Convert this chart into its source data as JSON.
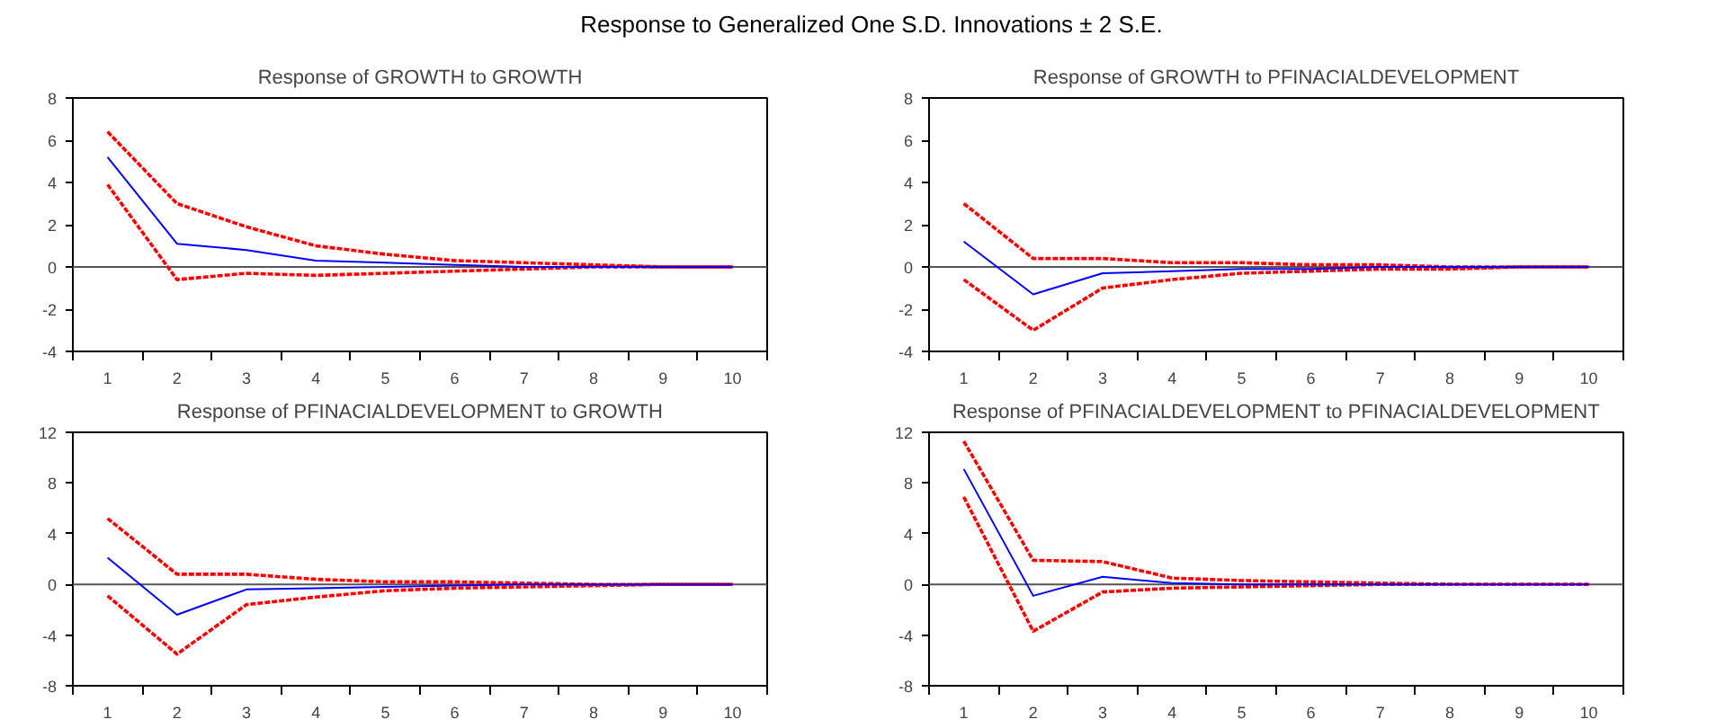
{
  "chart_data": [
    {
      "type": "line",
      "title": "Response of GROWTH to GROWTH",
      "annotations": [
        "Response to Generalized One S.D. Innovations ± 2 S.E."
      ],
      "categories": [
        "1",
        "2",
        "3",
        "4",
        "5",
        "6",
        "7",
        "8",
        "9",
        "10"
      ],
      "ylim": [
        -4,
        8
      ],
      "yticks": [
        -4,
        -2,
        0,
        2,
        4,
        6,
        8
      ],
      "grid": false,
      "ref_lines": [
        {
          "axis": "y",
          "value": 0,
          "color": "#555555"
        }
      ],
      "series": [
        {
          "color": "#ff0000",
          "line_style": "dashed",
          "values": [
            6.4,
            3.0,
            1.9,
            1.0,
            0.6,
            0.3,
            0.2,
            0.1,
            0.0,
            0.0
          ]
        },
        {
          "color": "#ff0000",
          "line_style": "dashed",
          "values": [
            3.9,
            -0.6,
            -0.3,
            -0.4,
            -0.3,
            -0.2,
            -0.1,
            0.0,
            0.0,
            0.0
          ]
        },
        {
          "color": "#0000ff",
          "line_style": "solid",
          "values": [
            5.2,
            1.1,
            0.8,
            0.3,
            0.2,
            0.1,
            0.0,
            0.0,
            0.0,
            0.0
          ]
        }
      ]
    },
    {
      "type": "line",
      "title": "Response of GROWTH to PFINACIALDEVELOPMENT",
      "categories": [
        "1",
        "2",
        "3",
        "4",
        "5",
        "6",
        "7",
        "8",
        "9",
        "10"
      ],
      "ylim": [
        -4,
        8
      ],
      "yticks": [
        -4,
        -2,
        0,
        2,
        4,
        6,
        8
      ],
      "grid": false,
      "ref_lines": [
        {
          "axis": "y",
          "value": 0,
          "color": "#555555"
        }
      ],
      "series": [
        {
          "color": "#ff0000",
          "line_style": "dashed",
          "values": [
            3.0,
            0.4,
            0.4,
            0.2,
            0.2,
            0.1,
            0.1,
            0.0,
            0.0,
            0.0
          ]
        },
        {
          "color": "#ff0000",
          "line_style": "dashed",
          "values": [
            -0.6,
            -3.0,
            -1.0,
            -0.6,
            -0.3,
            -0.2,
            -0.1,
            -0.1,
            0.0,
            0.0
          ]
        },
        {
          "color": "#0000ff",
          "line_style": "solid",
          "values": [
            1.2,
            -1.3,
            -0.3,
            -0.2,
            -0.1,
            -0.1,
            0.0,
            0.0,
            0.0,
            0.0
          ]
        }
      ]
    },
    {
      "type": "line",
      "title": "Response of PFINACIALDEVELOPMENT to GROWTH",
      "categories": [
        "1",
        "2",
        "3",
        "4",
        "5",
        "6",
        "7",
        "8",
        "9",
        "10"
      ],
      "ylim": [
        -8,
        12
      ],
      "yticks": [
        -8,
        -4,
        0,
        4,
        8,
        12
      ],
      "grid": false,
      "ref_lines": [
        {
          "axis": "y",
          "value": 0,
          "color": "#555555"
        }
      ],
      "series": [
        {
          "color": "#ff0000",
          "line_style": "dashed",
          "values": [
            5.2,
            0.8,
            0.8,
            0.4,
            0.2,
            0.2,
            0.1,
            0.0,
            0.0,
            0.0
          ]
        },
        {
          "color": "#ff0000",
          "line_style": "dashed",
          "values": [
            -0.9,
            -5.5,
            -1.6,
            -1.0,
            -0.5,
            -0.3,
            -0.2,
            -0.1,
            0.0,
            0.0
          ]
        },
        {
          "color": "#0000ff",
          "line_style": "solid",
          "values": [
            2.1,
            -2.4,
            -0.4,
            -0.3,
            -0.2,
            -0.1,
            0.0,
            0.0,
            0.0,
            0.0
          ]
        }
      ]
    },
    {
      "type": "line",
      "title": "Response of PFINACIALDEVELOPMENT to PFINACIALDEVELOPMENT",
      "categories": [
        "1",
        "2",
        "3",
        "4",
        "5",
        "6",
        "7",
        "8",
        "9",
        "10"
      ],
      "ylim": [
        -8,
        12
      ],
      "yticks": [
        -8,
        -4,
        0,
        4,
        8,
        12
      ],
      "grid": false,
      "ref_lines": [
        {
          "axis": "y",
          "value": 0,
          "color": "#555555"
        }
      ],
      "series": [
        {
          "color": "#ff0000",
          "line_style": "dashed",
          "values": [
            11.3,
            1.9,
            1.8,
            0.5,
            0.3,
            0.2,
            0.1,
            0.0,
            0.0,
            0.0
          ]
        },
        {
          "color": "#ff0000",
          "line_style": "dashed",
          "values": [
            6.9,
            -3.7,
            -0.6,
            -0.3,
            -0.2,
            -0.1,
            0.0,
            0.0,
            0.0,
            0.0
          ]
        },
        {
          "color": "#0000ff",
          "line_style": "solid",
          "values": [
            9.1,
            -0.9,
            0.6,
            0.1,
            0.0,
            0.0,
            0.0,
            0.0,
            0.0,
            0.0
          ]
        }
      ]
    }
  ]
}
